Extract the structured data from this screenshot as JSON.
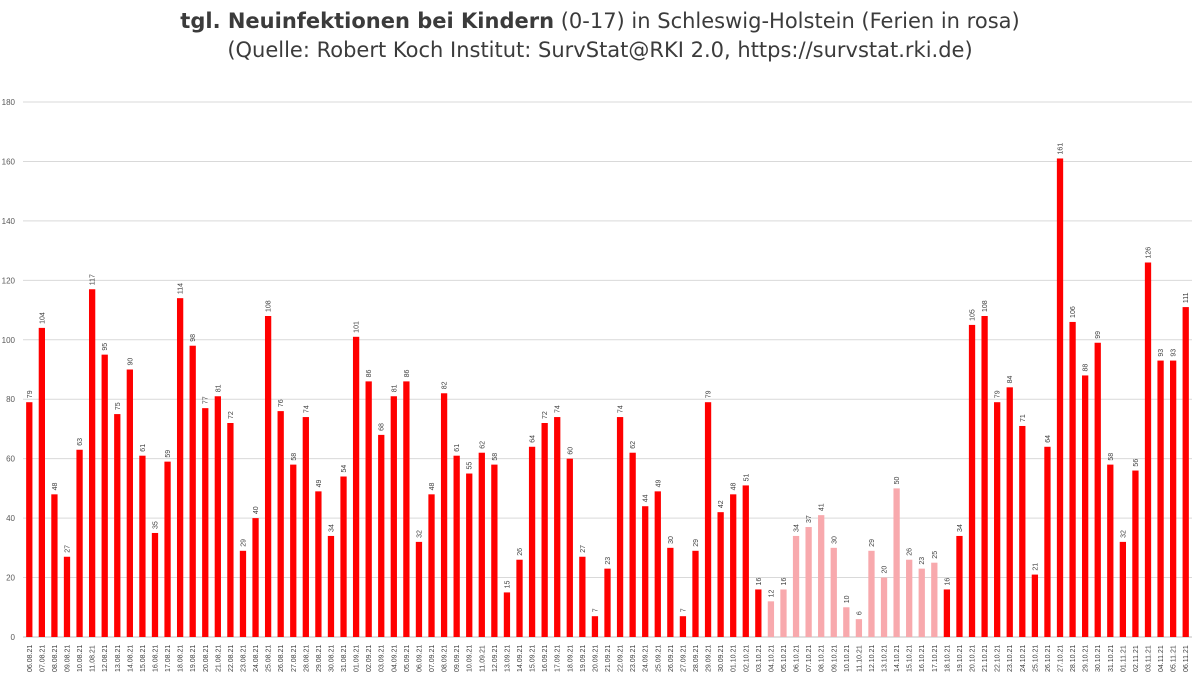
{
  "chart_data": {
    "type": "bar",
    "title_bold": "tgl. Neuinfektionen bei Kindern",
    "title_rest": " (0-17) in Schleswig-Holstein (Ferien in rosa)",
    "subtitle": "(Quelle: Robert Koch Institut: SurvStat@RKI 2.0, https://survstat.rki.de)",
    "xlabel": "",
    "ylabel": "",
    "ylim": [
      0,
      180
    ],
    "yticks": [
      0,
      20,
      40,
      60,
      80,
      100,
      120,
      140,
      160,
      180
    ],
    "grid": true,
    "legend": "none",
    "colors": {
      "school": "#ff0000",
      "holiday": "#f8a9ad",
      "grid": "#d9d9d9",
      "axis": "#bfbfbf"
    },
    "categories": [
      "06.08.21",
      "07.08.21",
      "08.08.21",
      "09.08.21",
      "10.08.21",
      "11.08.21",
      "12.08.21",
      "13.08.21",
      "14.08.21",
      "15.08.21",
      "16.08.21",
      "17.08.21",
      "18.08.21",
      "19.08.21",
      "20.08.21",
      "21.08.21",
      "22.08.21",
      "23.08.21",
      "24.08.21",
      "25.08.21",
      "26.08.21",
      "27.08.21",
      "28.08.21",
      "29.08.21",
      "30.08.21",
      "31.08.21",
      "01.09.21",
      "02.09.21",
      "03.09.21",
      "04.09.21",
      "05.09.21",
      "06.09.21",
      "07.09.21",
      "08.09.21",
      "09.09.21",
      "10.09.21",
      "11.09.21",
      "12.09.21",
      "13.09.21",
      "14.09.21",
      "15.09.21",
      "16.09.21",
      "17.09.21",
      "18.09.21",
      "19.09.21",
      "20.09.21",
      "21.09.21",
      "22.09.21",
      "23.09.21",
      "24.09.21",
      "25.09.21",
      "26.09.21",
      "27.09.21",
      "28.09.21",
      "29.09.21",
      "30.09.21",
      "01.10.21",
      "02.10.21",
      "03.10.21",
      "04.10.21",
      "05.10.21",
      "06.10.21",
      "07.10.21",
      "08.10.21",
      "09.10.21",
      "10.10.21",
      "11.10.21",
      "12.10.21",
      "13.10.21",
      "14.10.21",
      "15.10.21",
      "16.10.21",
      "17.10.21",
      "18.10.21",
      "19.10.21",
      "20.10.21",
      "21.10.21",
      "22.10.21",
      "23.10.21",
      "24.10.21",
      "25.10.21",
      "26.10.21",
      "27.10.21",
      "28.10.21",
      "29.10.21",
      "30.10.21",
      "31.10.21",
      "01.11.21",
      "02.11.21",
      "03.11.21",
      "04.11.21",
      "05.11.21",
      "06.11.21"
    ],
    "values": [
      79,
      104,
      48,
      27,
      63,
      117,
      95,
      75,
      90,
      61,
      35,
      59,
      114,
      98,
      77,
      81,
      72,
      29,
      40,
      108,
      76,
      58,
      74,
      49,
      34,
      54,
      101,
      86,
      68,
      81,
      86,
      32,
      48,
      82,
      61,
      55,
      62,
      58,
      15,
      26,
      64,
      72,
      74,
      60,
      27,
      7,
      23,
      74,
      62,
      44,
      49,
      30,
      7,
      29,
      79,
      42,
      48,
      51,
      16,
      12,
      16,
      34,
      37,
      41,
      30,
      10,
      6,
      29,
      20,
      50,
      26,
      23,
      25,
      16,
      34,
      105,
      108,
      79,
      84,
      71,
      21,
      64,
      161,
      106,
      88,
      99,
      58,
      32,
      56,
      126,
      93,
      93,
      111
    ],
    "holiday": [
      false,
      false,
      false,
      false,
      false,
      false,
      false,
      false,
      false,
      false,
      false,
      false,
      false,
      false,
      false,
      false,
      false,
      false,
      false,
      false,
      false,
      false,
      false,
      false,
      false,
      false,
      false,
      false,
      false,
      false,
      false,
      false,
      false,
      false,
      false,
      false,
      false,
      false,
      false,
      false,
      false,
      false,
      false,
      false,
      false,
      false,
      false,
      false,
      false,
      false,
      false,
      false,
      false,
      false,
      false,
      false,
      false,
      false,
      false,
      true,
      true,
      true,
      true,
      true,
      true,
      true,
      true,
      true,
      true,
      true,
      true,
      true,
      true,
      false,
      false,
      false,
      false,
      false,
      false,
      false,
      false,
      false,
      false,
      false,
      false,
      false,
      false,
      false,
      false,
      false,
      false,
      false,
      false
    ]
  }
}
